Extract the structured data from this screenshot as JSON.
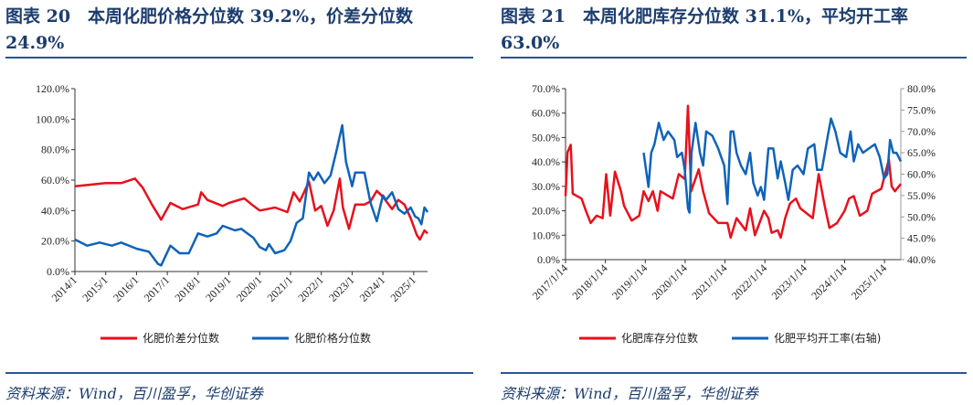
{
  "left": {
    "title": "图表 20　本周化肥价格分位数 39.2%，价差分位数 24.9%",
    "source": "资料来源：Wind，百川盈孚，华创证券"
  },
  "right": {
    "title": "图表 21　本周化肥库存分位数 31.1%，平均开工率 63.0%",
    "source": "资料来源：Wind，百川盈孚，华创证券"
  },
  "chart_data": [
    {
      "type": "line",
      "ylim": [
        0,
        120
      ],
      "yticks": [
        "0.0%",
        "20.0%",
        "40.0%",
        "60.0%",
        "80.0%",
        "100.0%",
        "120.0%"
      ],
      "xlim": [
        2014,
        2025.45
      ],
      "xticks": [
        "2014/1",
        "2015/1",
        "2016/1",
        "2017/1",
        "2018/1",
        "2019/1",
        "2020/1",
        "2021/1",
        "2022/1",
        "2023/1",
        "2024/1",
        "2025/1"
      ],
      "legend_position": "bottom",
      "series": [
        {
          "name": "化肥价差分位数",
          "color": "#e8101c",
          "axis": "left",
          "points": [
            [
              2014,
              56
            ],
            [
              2014.5,
              57
            ],
            [
              2015,
              58
            ],
            [
              2015.5,
              58
            ],
            [
              2015.95,
              61
            ],
            [
              2016.2,
              55
            ],
            [
              2016.5,
              44
            ],
            [
              2016.8,
              34
            ],
            [
              2017.1,
              45
            ],
            [
              2017.5,
              41
            ],
            [
              2018,
              44
            ],
            [
              2018.1,
              52
            ],
            [
              2018.3,
              47
            ],
            [
              2018.8,
              43
            ],
            [
              2019,
              45
            ],
            [
              2019.5,
              48
            ],
            [
              2019.8,
              43
            ],
            [
              2020,
              40
            ],
            [
              2020.5,
              42
            ],
            [
              2020.9,
              39
            ],
            [
              2021.1,
              52
            ],
            [
              2021.3,
              46
            ],
            [
              2021.6,
              59
            ],
            [
              2021.8,
              40
            ],
            [
              2022,
              43
            ],
            [
              2022.2,
              30
            ],
            [
              2022.4,
              40
            ],
            [
              2022.6,
              61
            ],
            [
              2022.7,
              42
            ],
            [
              2022.9,
              28
            ],
            [
              2023.1,
              44
            ],
            [
              2023.4,
              44
            ],
            [
              2023.6,
              46
            ],
            [
              2023.8,
              53
            ],
            [
              2024,
              49
            ],
            [
              2024.3,
              41
            ],
            [
              2024.5,
              47
            ],
            [
              2024.7,
              44
            ],
            [
              2024.9,
              35
            ],
            [
              2025.1,
              24
            ],
            [
              2025.2,
              21
            ],
            [
              2025.35,
              27
            ],
            [
              2025.45,
              25
            ]
          ]
        },
        {
          "name": "化肥价格分位数",
          "color": "#0f63b9",
          "axis": "left",
          "points": [
            [
              2014,
              21
            ],
            [
              2014.4,
              17
            ],
            [
              2014.8,
              19
            ],
            [
              2015.2,
              17
            ],
            [
              2015.5,
              19
            ],
            [
              2016,
              15
            ],
            [
              2016.4,
              13
            ],
            [
              2016.7,
              5
            ],
            [
              2016.8,
              4
            ],
            [
              2017.1,
              17
            ],
            [
              2017.4,
              12
            ],
            [
              2017.7,
              12
            ],
            [
              2018,
              25
            ],
            [
              2018.3,
              23
            ],
            [
              2018.6,
              25
            ],
            [
              2018.8,
              30
            ],
            [
              2019.2,
              27
            ],
            [
              2019.4,
              28
            ],
            [
              2019.8,
              22
            ],
            [
              2020,
              16
            ],
            [
              2020.2,
              14
            ],
            [
              2020.3,
              18
            ],
            [
              2020.5,
              12
            ],
            [
              2020.8,
              14
            ],
            [
              2021,
              20
            ],
            [
              2021.2,
              32
            ],
            [
              2021.4,
              35
            ],
            [
              2021.6,
              65
            ],
            [
              2021.75,
              60
            ],
            [
              2021.9,
              65
            ],
            [
              2022.1,
              58
            ],
            [
              2022.3,
              63
            ],
            [
              2022.5,
              80
            ],
            [
              2022.68,
              96
            ],
            [
              2022.8,
              72
            ],
            [
              2023,
              56
            ],
            [
              2023.1,
              65
            ],
            [
              2023.4,
              65
            ],
            [
              2023.6,
              45
            ],
            [
              2023.8,
              33
            ],
            [
              2024,
              50
            ],
            [
              2024.1,
              47
            ],
            [
              2024.3,
              52
            ],
            [
              2024.5,
              41
            ],
            [
              2024.7,
              38
            ],
            [
              2024.9,
              42
            ],
            [
              2025.05,
              36
            ],
            [
              2025.15,
              35
            ],
            [
              2025.25,
              31
            ],
            [
              2025.35,
              42
            ],
            [
              2025.45,
              39
            ]
          ]
        }
      ]
    },
    {
      "type": "line",
      "ylim": [
        0,
        70
      ],
      "y2lim": [
        40,
        80
      ],
      "yticks": [
        "0.0%",
        "10.0%",
        "20.0%",
        "30.0%",
        "40.0%",
        "50.0%",
        "60.0%",
        "70.0%"
      ],
      "y2ticks": [
        "40.0%",
        "45.0%",
        "50.0%",
        "55.0%",
        "60.0%",
        "65.0%",
        "70.0%",
        "75.0%",
        "80.0%"
      ],
      "xlim": [
        2017.04,
        2025.45
      ],
      "xticks": [
        "2017/1/14",
        "2018/1/14",
        "2019/1/14",
        "2020/1/14",
        "2021/1/14",
        "2022/1/14",
        "2023/1/14",
        "2024/1/14",
        "2025/1/14"
      ],
      "legend_position": "bottom",
      "series": [
        {
          "name": "化肥库存分位数",
          "color": "#e8101c",
          "axis": "left",
          "points": [
            [
              2017.04,
              26
            ],
            [
              2017.09,
              44
            ],
            [
              2017.17,
              47
            ],
            [
              2017.22,
              27
            ],
            [
              2017.44,
              25
            ],
            [
              2017.55,
              20
            ],
            [
              2017.67,
              15
            ],
            [
              2017.82,
              18
            ],
            [
              2017.97,
              17
            ],
            [
              2018.06,
              35
            ],
            [
              2018.16,
              18
            ],
            [
              2018.28,
              36
            ],
            [
              2018.43,
              28
            ],
            [
              2018.51,
              22
            ],
            [
              2018.7,
              16
            ],
            [
              2018.89,
              18
            ],
            [
              2019.0,
              28
            ],
            [
              2019.12,
              24
            ],
            [
              2019.23,
              28
            ],
            [
              2019.35,
              20
            ],
            [
              2019.42,
              28
            ],
            [
              2019.73,
              25
            ],
            [
              2019.88,
              35
            ],
            [
              2020.03,
              33
            ],
            [
              2020.11,
              63
            ],
            [
              2020.19,
              28
            ],
            [
              2020.38,
              37
            ],
            [
              2020.49,
              28
            ],
            [
              2020.64,
              19
            ],
            [
              2020.87,
              15
            ],
            [
              2021.1,
              15
            ],
            [
              2021.18,
              9
            ],
            [
              2021.33,
              17
            ],
            [
              2021.56,
              12
            ],
            [
              2021.67,
              21
            ],
            [
              2021.79,
              10
            ],
            [
              2022.02,
              20
            ],
            [
              2022.13,
              17
            ],
            [
              2022.21,
              11
            ],
            [
              2022.36,
              12
            ],
            [
              2022.44,
              9
            ],
            [
              2022.55,
              17
            ],
            [
              2022.67,
              23
            ],
            [
              2022.82,
              25
            ],
            [
              2022.93,
              21
            ],
            [
              2023.24,
              17
            ],
            [
              2023.39,
              35
            ],
            [
              2023.54,
              22
            ],
            [
              2023.66,
              13
            ],
            [
              2023.85,
              15
            ],
            [
              2024.04,
              20
            ],
            [
              2024.15,
              25
            ],
            [
              2024.27,
              26
            ],
            [
              2024.42,
              18
            ],
            [
              2024.61,
              20
            ],
            [
              2024.73,
              27
            ],
            [
              2024.96,
              29
            ],
            [
              2025.15,
              41
            ],
            [
              2025.22,
              30
            ],
            [
              2025.3,
              28
            ],
            [
              2025.45,
              31
            ]
          ]
        },
        {
          "name": "化肥平均开工率(右轴)",
          "color": "#0f63b9",
          "axis": "right",
          "points": [
            [
              2019.0,
              65
            ],
            [
              2019.12,
              57
            ],
            [
              2019.19,
              65
            ],
            [
              2019.27,
              67
            ],
            [
              2019.38,
              72
            ],
            [
              2019.5,
              68
            ],
            [
              2019.61,
              70
            ],
            [
              2019.77,
              68
            ],
            [
              2019.84,
              64
            ],
            [
              2019.96,
              65
            ],
            [
              2020.03,
              61
            ],
            [
              2020.11,
              52
            ],
            [
              2020.15,
              51
            ],
            [
              2020.2,
              65
            ],
            [
              2020.3,
              72
            ],
            [
              2020.41,
              65
            ],
            [
              2020.49,
              62
            ],
            [
              2020.57,
              70
            ],
            [
              2020.72,
              69
            ],
            [
              2020.87,
              66
            ],
            [
              2021.02,
              62
            ],
            [
              2021.1,
              53
            ],
            [
              2021.18,
              70
            ],
            [
              2021.25,
              70
            ],
            [
              2021.33,
              65
            ],
            [
              2021.44,
              62
            ],
            [
              2021.56,
              60
            ],
            [
              2021.67,
              65
            ],
            [
              2021.75,
              58
            ],
            [
              2021.86,
              55
            ],
            [
              2021.94,
              57
            ],
            [
              2022.02,
              54
            ],
            [
              2022.13,
              66
            ],
            [
              2022.25,
              66
            ],
            [
              2022.36,
              59
            ],
            [
              2022.44,
              63
            ],
            [
              2022.55,
              58
            ],
            [
              2022.63,
              54
            ],
            [
              2022.74,
              61
            ],
            [
              2022.86,
              62
            ],
            [
              2023.01,
              60
            ],
            [
              2023.12,
              66
            ],
            [
              2023.28,
              67
            ],
            [
              2023.35,
              61
            ],
            [
              2023.47,
              61
            ],
            [
              2023.62,
              69
            ],
            [
              2023.7,
              73
            ],
            [
              2023.81,
              70
            ],
            [
              2023.93,
              65
            ],
            [
              2024.08,
              64
            ],
            [
              2024.19,
              70
            ],
            [
              2024.27,
              63
            ],
            [
              2024.38,
              67
            ],
            [
              2024.5,
              65
            ],
            [
              2024.65,
              66
            ],
            [
              2024.8,
              67
            ],
            [
              2024.92,
              64
            ],
            [
              2025.03,
              59
            ],
            [
              2025.11,
              60
            ],
            [
              2025.18,
              68
            ],
            [
              2025.26,
              65
            ],
            [
              2025.34,
              65
            ],
            [
              2025.45,
              63
            ]
          ]
        }
      ]
    }
  ]
}
